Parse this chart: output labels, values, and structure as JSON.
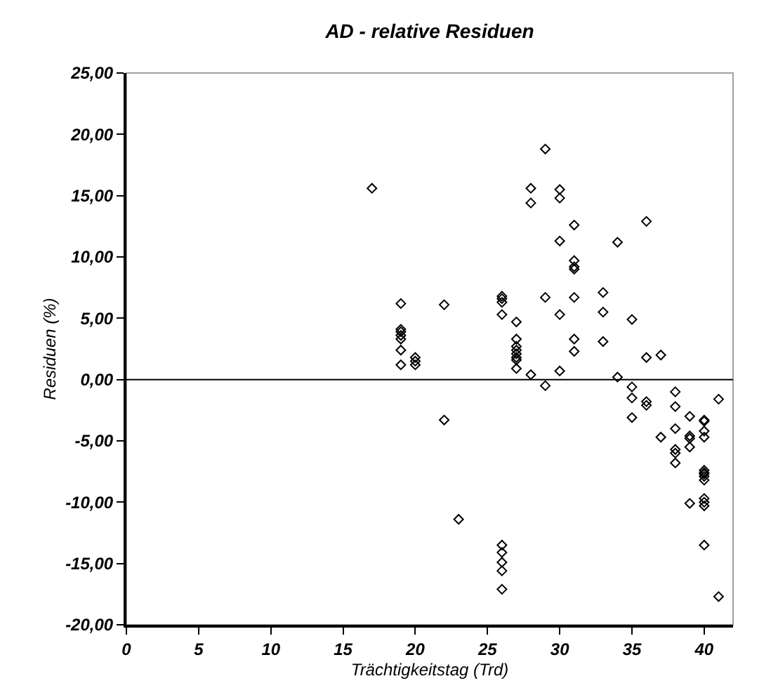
{
  "chart_data": {
    "type": "scatter",
    "title": "AD - relative Residuen",
    "xlabel": "Trächtigkeitstag (Trd)",
    "ylabel": "Residuen (%)",
    "series": [
      {
        "color": "#000000",
        "x": [
          17,
          29,
          28,
          28,
          30,
          30,
          31,
          30,
          34,
          36,
          31,
          31,
          31,
          19,
          22,
          26,
          26,
          26,
          26,
          29,
          31,
          33,
          33,
          30,
          27,
          35,
          19,
          19,
          19,
          19,
          19,
          19,
          20,
          20,
          20,
          27,
          27,
          27,
          27,
          27,
          27,
          27,
          31,
          31,
          33,
          36,
          37,
          28,
          30,
          34,
          29,
          35,
          35,
          35,
          36,
          36,
          38,
          38,
          38,
          38,
          38,
          38,
          22,
          39,
          39,
          39,
          39,
          37,
          40,
          40,
          40,
          40,
          41,
          40,
          40,
          40,
          40,
          40,
          39,
          40,
          40,
          40,
          23,
          40,
          26,
          26,
          26,
          26,
          26,
          41
        ],
        "values": [
          15.6,
          18.8,
          15.6,
          14.4,
          15.5,
          14.8,
          12.6,
          11.3,
          11.2,
          12.9,
          9.7,
          9.2,
          9.0,
          6.2,
          6.1,
          6.8,
          6.6,
          6.3,
          5.3,
          6.7,
          6.7,
          7.1,
          5.5,
          5.3,
          4.7,
          4.9,
          4.1,
          3.9,
          3.6,
          3.3,
          2.4,
          1.2,
          1.8,
          1.5,
          1.2,
          3.3,
          2.7,
          2.4,
          2.1,
          1.8,
          1.6,
          0.9,
          3.3,
          2.3,
          3.1,
          1.8,
          2.0,
          0.4,
          0.7,
          0.2,
          -0.5,
          -0.6,
          -1.5,
          -3.1,
          -1.8,
          -2.1,
          -1.0,
          -2.2,
          -4.0,
          -5.7,
          -6.0,
          -6.8,
          -3.3,
          -3.0,
          -4.6,
          -4.8,
          -5.5,
          -4.7,
          -3.3,
          -3.4,
          -4.2,
          -4.7,
          -1.6,
          -7.4,
          -7.6,
          -7.9,
          -8.2,
          -9.7,
          -10.1,
          -10.0,
          -10.3,
          -13.5,
          -11.4,
          -7.7,
          -13.5,
          -14.1,
          -14.9,
          -15.6,
          -17.1,
          -17.7
        ]
      }
    ],
    "marker": "diamond",
    "grid": false,
    "xlim": [
      0,
      42
    ],
    "xticks": [
      0,
      5,
      10,
      15,
      20,
      25,
      30,
      35,
      40
    ],
    "ylim": [
      -20,
      25
    ],
    "yticks": [
      {
        "value": -20,
        "label": "-20,00"
      },
      {
        "value": -15,
        "label": "-15,00"
      },
      {
        "value": -10,
        "label": "-10,00"
      },
      {
        "value": -5,
        "label": "-5,00"
      },
      {
        "value": 0,
        "label": "0,00"
      },
      {
        "value": 5,
        "label": "5,00"
      },
      {
        "value": 10,
        "label": "10,00"
      },
      {
        "value": 15,
        "label": "15,00"
      },
      {
        "value": 20,
        "label": "20,00"
      },
      {
        "value": 25,
        "label": "25,00"
      }
    ],
    "ref_lines": [
      {
        "axis": "y",
        "value": 0,
        "color": "#000000"
      }
    ]
  }
}
